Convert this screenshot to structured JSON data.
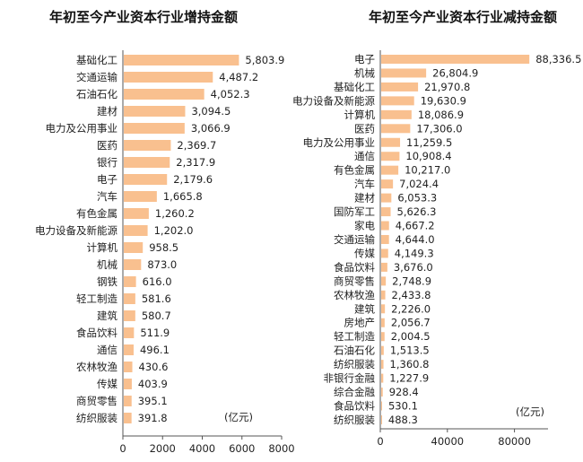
{
  "chart_data": [
    {
      "type": "bar",
      "orientation": "horizontal",
      "title": "年初至今产业资本行业增持金额",
      "unit_label": "(亿元)",
      "xlim": [
        0,
        8000
      ],
      "x_ticks": [
        0,
        2000,
        4000,
        6000,
        8000
      ],
      "bar_color": "#F9C08F",
      "categories": [
        "基础化工",
        "交通运输",
        "石油石化",
        "建材",
        "电力及公用事业",
        "医药",
        "银行",
        "电子",
        "汽车",
        "有色金属",
        "电力设备及新能源",
        "计算机",
        "机械",
        "钢铁",
        "轻工制造",
        "建筑",
        "食品饮料",
        "通信",
        "农林牧渔",
        "传媒",
        "商贸零售",
        "纺织服装"
      ],
      "values": [
        5803.9,
        4487.2,
        4052.3,
        3094.5,
        3066.9,
        2369.7,
        2317.9,
        2179.6,
        1665.8,
        1260.2,
        1202.0,
        958.5,
        873.0,
        616.0,
        581.6,
        580.7,
        511.9,
        496.1,
        430.6,
        403.9,
        395.1,
        391.8
      ],
      "value_labels": [
        "5,803.9",
        "4,487.2",
        "4,052.3",
        "3,094.5",
        "3,066.9",
        "2,369.7",
        "2,317.9",
        "2,179.6",
        "1,665.8",
        "1,260.2",
        "1,202.0",
        "958.5",
        "873.0",
        "616.0",
        "581.6",
        "580.7",
        "511.9",
        "496.1",
        "430.6",
        "403.9",
        "395.1",
        "391.8"
      ]
    },
    {
      "type": "bar",
      "orientation": "horizontal",
      "title": "年初至今产业资本行业减持金额",
      "unit_label": "(亿元)",
      "xlim": [
        0,
        100000
      ],
      "x_ticks": [
        0,
        40000,
        80000
      ],
      "bar_color": "#F9C08F",
      "categories": [
        "电子",
        "机械",
        "基础化工",
        "电力设备及新能源",
        "计算机",
        "医药",
        "电力及公用事业",
        "通信",
        "有色金属",
        "汽车",
        "建材",
        "国防军工",
        "家电",
        "交通运输",
        "传媒",
        "食品饮料",
        "商贸零售",
        "农林牧渔",
        "建筑",
        "房地产",
        "轻工制造",
        "石油石化",
        "纺织服装",
        "非银行金融",
        "综合金融",
        "食品饮料",
        "纺织服装"
      ],
      "values": [
        88336.5,
        26804.9,
        21970.8,
        19630.9,
        18086.9,
        17306.0,
        11259.5,
        10908.4,
        10217.0,
        7024.4,
        6053.3,
        5626.3,
        4667.2,
        4644.0,
        4149.3,
        3676.0,
        2748.9,
        2433.8,
        2226.0,
        2056.7,
        2004.5,
        1513.5,
        1360.8,
        1227.9,
        928.4,
        530.1,
        488.3
      ],
      "value_labels": [
        "88,336.5",
        "26,804.9",
        "21,970.8",
        "19,630.9",
        "18,086.9",
        "17,306.0",
        "11,259.5",
        "10,908.4",
        "10,217.0",
        "7,024.4",
        "6,053.3",
        "5,626.3",
        "4,667.2",
        "4,644.0",
        "4,149.3",
        "3,676.0",
        "2,748.9",
        "2,433.8",
        "2,226.0",
        "2,056.7",
        "2,004.5",
        "1,513.5",
        "1,360.8",
        "1,227.9",
        "928.4",
        "530.1",
        "488.3"
      ]
    }
  ]
}
